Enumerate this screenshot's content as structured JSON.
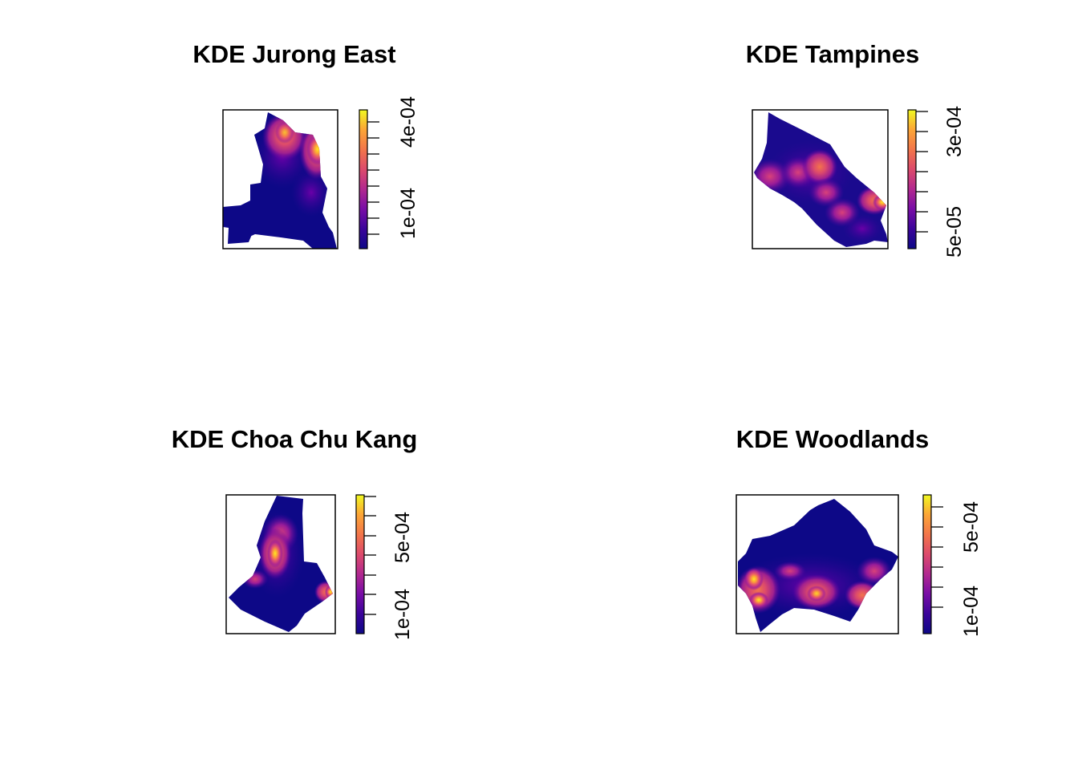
{
  "palette": {
    "name": "plasma-like",
    "stops": [
      "#0d0887",
      "#3a049a",
      "#7a0ea6",
      "#b2298f",
      "#dc4a6c",
      "#f2744b",
      "#fca636",
      "#f0f921"
    ]
  },
  "chart_data": [
    {
      "type": "heatmap",
      "title": "KDE Jurong East",
      "legend_ticks": [
        "4e-04",
        "1e-04"
      ],
      "legend_tick_values": [
        0.0004,
        0.0001
      ],
      "legend_range": [
        1e-05,
        0.00047
      ]
    },
    {
      "type": "heatmap",
      "title": "KDE Tampines",
      "legend_ticks": [
        "3e-04",
        "5e-05"
      ],
      "legend_tick_values": [
        0.0003,
        5e-05
      ],
      "legend_range": [
        1e-05,
        0.00034
      ]
    },
    {
      "type": "heatmap",
      "title": "KDE Choa Chu Kang",
      "legend_ticks": [
        "5e-04",
        "1e-04"
      ],
      "legend_tick_values": [
        0.0005,
        0.0001
      ],
      "legend_range": [
        1e-05,
        0.00068
      ]
    },
    {
      "type": "heatmap",
      "title": "KDE Woodlands",
      "legend_ticks": [
        "5e-04",
        "1e-04"
      ],
      "legend_tick_values": [
        0.0005,
        0.0001
      ],
      "legend_range": [
        1e-05,
        0.00068
      ]
    }
  ]
}
